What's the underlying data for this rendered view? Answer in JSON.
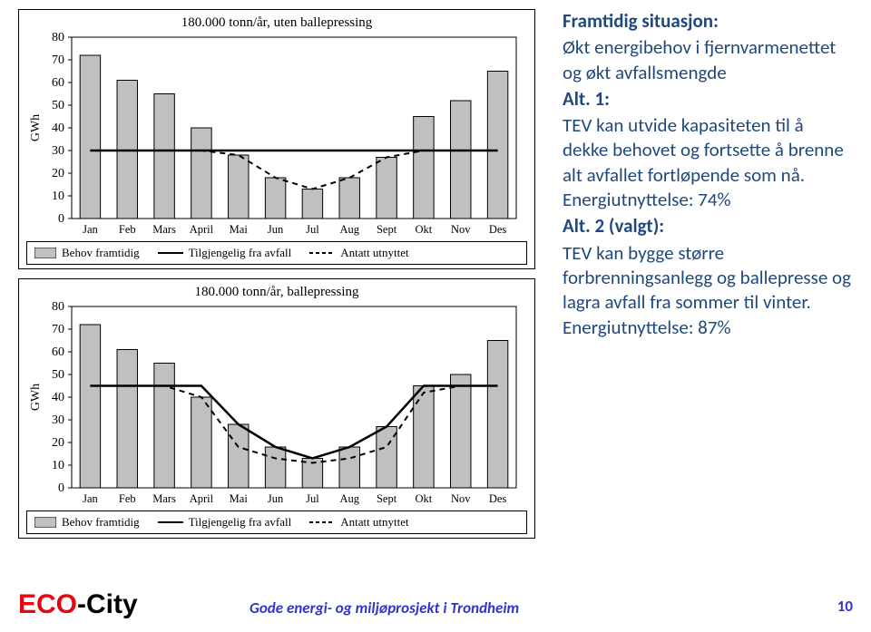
{
  "footer": {
    "brand_eco": "ECO",
    "brand_city": "-City",
    "mid": "Gode energi- og miljøprosjekt i Trondheim",
    "page": "10"
  },
  "right_text": {
    "head1": "Framtidig situasjon:",
    "line1": "Økt energibehov i fjernvarmenettet og økt avfallsmengde",
    "alt1_label": "Alt. 1:",
    "alt1_body": "TEV kan utvide kapasiteten til å dekke behovet og fortsette å brenne alt avfallet fortløpende som nå. Energiutnyttelse: 74%",
    "alt2_label": "Alt. 2 (valgt):",
    "alt2_body": "TEV kan bygge større forbrenningsanlegg og ballepresse og lagra avfall fra sommer til vinter. Energiutnyttelse: 87%"
  },
  "months": [
    "Jan",
    "Feb",
    "Mars",
    "April",
    "Mai",
    "Jun",
    "Jul",
    "Aug",
    "Sept",
    "Okt",
    "Nov",
    "Des"
  ],
  "y_axis": {
    "label": "GWh",
    "min": 0,
    "max": 80,
    "step": 10
  },
  "chart1": {
    "title": "180.000 tonn/år, uten ballepressing",
    "behov": [
      72,
      61,
      55,
      40,
      28,
      18,
      13,
      18,
      27,
      45,
      52,
      65
    ],
    "tilgj": [
      30,
      30,
      30,
      30,
      30,
      30,
      30,
      30,
      30,
      30,
      30,
      30
    ],
    "antatt": [
      30,
      30,
      30,
      30,
      28,
      18,
      13,
      18,
      27,
      30,
      30,
      30
    ]
  },
  "chart2": {
    "title": "180.000 tonn/år, ballepressing",
    "behov": [
      72,
      61,
      55,
      40,
      28,
      18,
      13,
      18,
      27,
      45,
      50,
      65
    ],
    "tilgj": [
      45,
      45,
      45,
      45,
      28,
      18,
      13,
      18,
      27,
      45,
      45,
      45
    ],
    "antatt": [
      45,
      45,
      45,
      40,
      18,
      13,
      11,
      13,
      18,
      42,
      45,
      45
    ]
  },
  "colors": {
    "bar_fill": "#c0c0c0",
    "bar_stroke": "#000000",
    "line": "#000000",
    "grid": "#000000",
    "bg": "#ffffff",
    "text": "#000000"
  },
  "legend": {
    "behov": "Behov framtidig",
    "tilgj": "Tilgjengelig fra avfall",
    "antatt": "Antatt utnyttet"
  }
}
